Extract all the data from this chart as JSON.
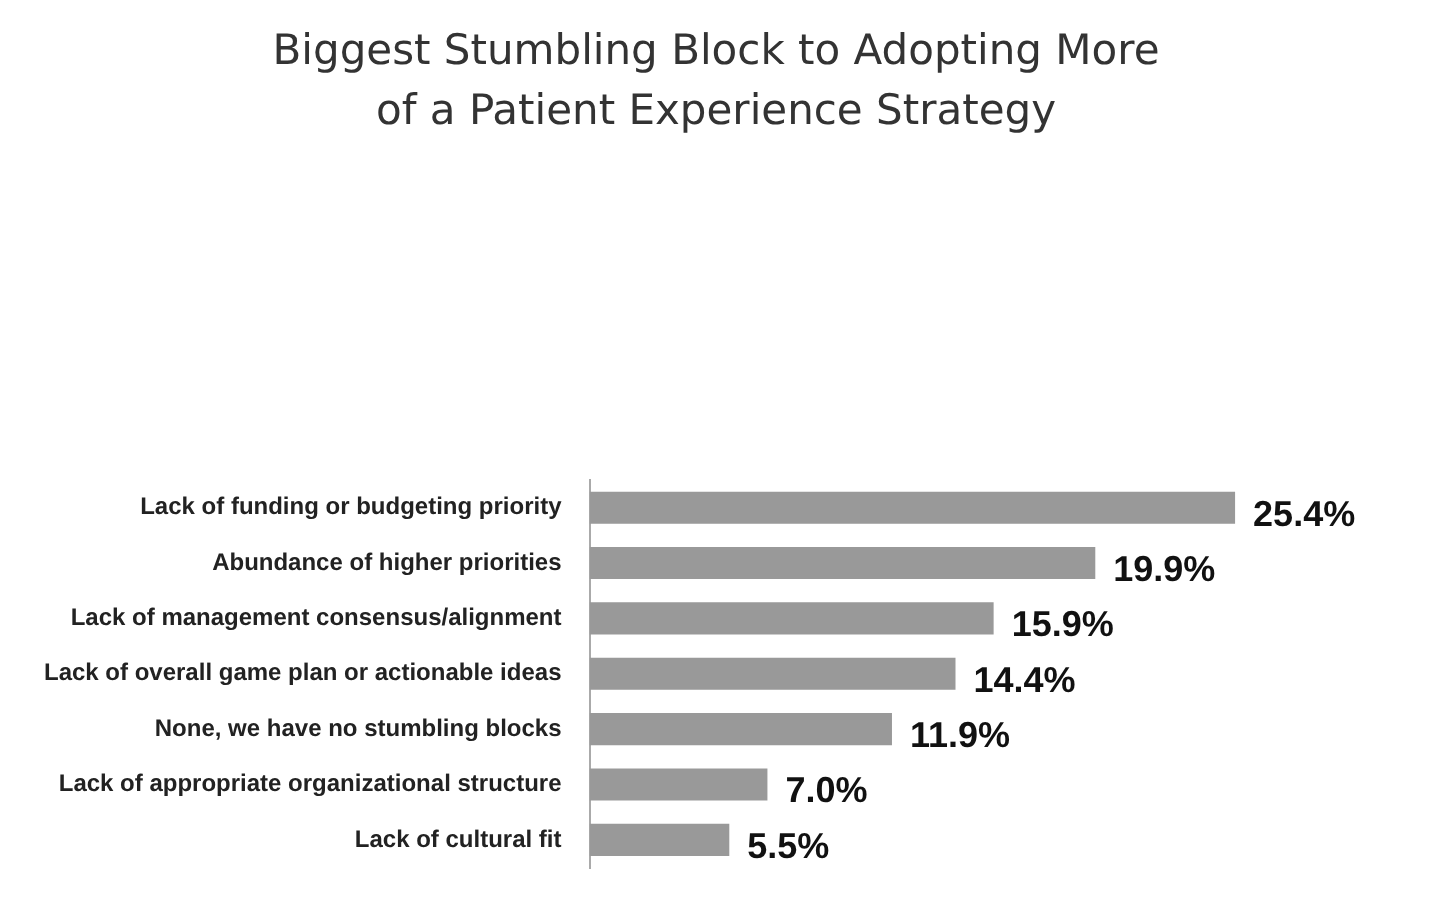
{
  "chart_data": {
    "type": "bar",
    "orientation": "horizontal",
    "title": "Biggest Stumbling Block to Adopting More of a Patient Experience Strategy",
    "categories": [
      "Lack of funding or budgeting priority",
      "Abundance of higher priorities",
      "Lack of management consensus/alignment",
      "Lack of overall game plan or actionable ideas",
      "None, we have no stumbling blocks",
      "Lack of appropriate organizational structure",
      "Lack of cultural fit"
    ],
    "values": [
      25.4,
      19.9,
      15.9,
      14.4,
      11.9,
      7.0,
      5.5
    ],
    "value_labels": [
      "25.4%",
      "19.9%",
      "15.9%",
      "14.4%",
      "11.9%",
      "7.0%",
      "5.5%"
    ],
    "color": "#999999",
    "legend": false
  }
}
